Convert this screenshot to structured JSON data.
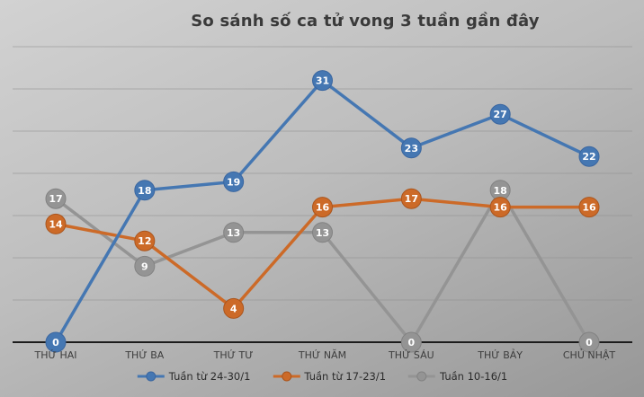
{
  "chart_data": {
    "type": "line",
    "title": "So sánh số ca tử vong 3 tuần gần đây",
    "categories": [
      "THỨ HAI",
      "THỨ BA",
      "THỨ TƯ",
      "THỨ NĂM",
      "THỨ SÁU",
      "THỨ BẢY",
      "CHỦ NHẬT"
    ],
    "series": [
      {
        "name": "Tuần từ 24-30/1",
        "color": "#4577b2",
        "border_color": "#3a66a0",
        "values": [
          0,
          18,
          19,
          31,
          23,
          27,
          22
        ]
      },
      {
        "name": "Tuần từ 17-23/1",
        "color": "#cc6a28",
        "border_color": "#aa551d",
        "values": [
          14,
          12,
          4,
          16,
          17,
          16,
          16
        ]
      },
      {
        "name": "Tuần 10-16/1",
        "color": "#949494",
        "border_color": "#828282",
        "values": [
          17,
          9,
          13,
          13,
          0,
          18,
          0
        ]
      }
    ],
    "ylim": [
      0,
      35
    ],
    "gridline_step": 5,
    "grid": true,
    "data_labels": true,
    "legend_position": "bottom",
    "xlabel": "",
    "ylabel": ""
  },
  "colors": {
    "title_text": "#3a3a3a",
    "axis_line": "#1c1c1c",
    "gridline": "#8e8e8e",
    "axis_label_text": "#3d3d3d",
    "marker_label_text": "#ffffff",
    "legend_text": "#2b2b2b",
    "background_start": "#d2d2d2",
    "background_mid": "#bdbdbd",
    "background_end": "#979797"
  }
}
